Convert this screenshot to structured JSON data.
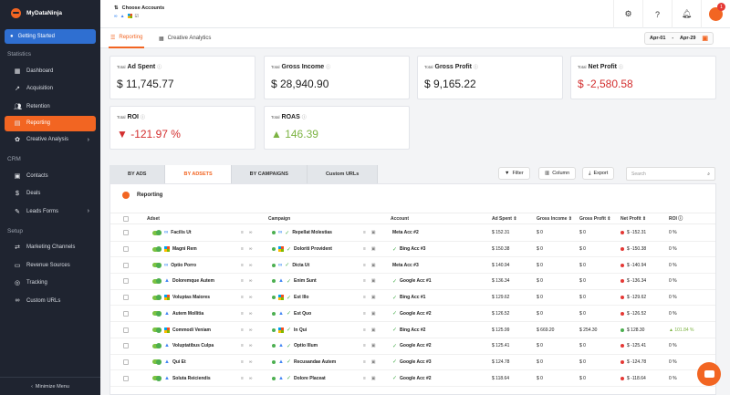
{
  "sidebar": {
    "brand": "MyDataNinja",
    "getting_started": "Getting Started",
    "sections": {
      "statistics": "Statistics",
      "crm": "CRM",
      "setup": "Setup"
    },
    "statistics_items": [
      {
        "label": "Dashboard",
        "icon": "dashboard-icon"
      },
      {
        "label": "Acquisition",
        "icon": "trend-icon"
      },
      {
        "label": "Retention",
        "icon": "users-icon"
      },
      {
        "label": "Reporting",
        "icon": "report-icon",
        "active": true
      },
      {
        "label": "Creative Analysis",
        "icon": "palette-icon",
        "has_children": true
      }
    ],
    "crm_items": [
      {
        "label": "Contacts",
        "icon": "contacts-icon"
      },
      {
        "label": "Deals",
        "icon": "dollar-icon"
      },
      {
        "label": "Leads Forms",
        "icon": "form-icon",
        "has_children": true
      }
    ],
    "setup_items": [
      {
        "label": "Marketing Channels",
        "icon": "channels-icon"
      },
      {
        "label": "Revenue Sources",
        "icon": "revenue-icon"
      },
      {
        "label": "Tracking",
        "icon": "tracking-icon"
      },
      {
        "label": "Custom URLs",
        "icon": "link-icon"
      }
    ],
    "minimize": "Minimize Menu"
  },
  "topbar": {
    "choose_accounts": "Choose Accounts",
    "notification_count": "1"
  },
  "tabs": {
    "reporting": "Reporting",
    "creative_analytics": "Creative Analytics",
    "date_from": "Apr-01",
    "date_sep": "-",
    "date_to": "Apr-29"
  },
  "kpis": [
    {
      "small": "Total",
      "label": "Ad Spent",
      "value": "$ 11,745.77",
      "tone": "neutral"
    },
    {
      "small": "Total",
      "label": "Gross Income",
      "value": "$ 28,940.90",
      "tone": "neutral"
    },
    {
      "small": "Total",
      "label": "Gross Profit",
      "value": "$ 9,165.22",
      "tone": "neutral"
    },
    {
      "small": "Total",
      "label": "Net Profit",
      "value": "$ -2,580.58",
      "tone": "negative"
    },
    {
      "small": "Total",
      "label": "ROI",
      "value": "▼ -121.97 %",
      "tone": "negative"
    },
    {
      "small": "Total",
      "label": "ROAS",
      "value": "▲ 146.39",
      "tone": "positive"
    }
  ],
  "view_tabs": [
    "BY ADS",
    "BY ADSETS",
    "BY CAMPAIGNS",
    "Custom URLs"
  ],
  "toolbar": {
    "filter": "Filter",
    "column": "Column",
    "export": "Export",
    "search_placeholder": "Search"
  },
  "table": {
    "title": "Reporting",
    "headers": {
      "adset": "Adset",
      "campaign": "Campaign",
      "account": "Account",
      "ad_spent": "Ad Spent",
      "gross_income": "Gross Income",
      "gross_profit": "Gross Profit",
      "net_profit": "Net Profit",
      "roi": "ROI"
    },
    "rows": [
      {
        "adset": "Facilis Ut",
        "adset_platform": "meta",
        "campaign": "Repellat Molestias",
        "campaign_platform": "meta",
        "account": "Meta Acc #2",
        "account_check": false,
        "ad_spent": "$ 152.31",
        "gross_income": "$ 0",
        "gross_profit": "$ 0",
        "net_profit": "$ -152.31",
        "net_positive": false,
        "roi": "0 %"
      },
      {
        "adset": "Magni Rem",
        "adset_platform": "microsoft",
        "campaign": "Doloriti Provident",
        "campaign_platform": "microsoft",
        "account": "Bing Acc #3",
        "account_check": true,
        "ad_spent": "$ 150.38",
        "gross_income": "$ 0",
        "gross_profit": "$ 0",
        "net_profit": "$ -150.38",
        "net_positive": false,
        "roi": "0 %"
      },
      {
        "adset": "Optio Porro",
        "adset_platform": "meta",
        "campaign": "Dicta Ut",
        "campaign_platform": "meta",
        "account": "Meta Acc #3",
        "account_check": false,
        "ad_spent": "$ 140.94",
        "gross_income": "$ 0",
        "gross_profit": "$ 0",
        "net_profit": "$ -140.94",
        "net_positive": false,
        "roi": "0 %"
      },
      {
        "adset": "Doloremque Autem",
        "adset_platform": "google",
        "campaign": "Enim Sunt",
        "campaign_platform": "google",
        "account": "Google Acc #1",
        "account_check": true,
        "ad_spent": "$ 136.34",
        "gross_income": "$ 0",
        "gross_profit": "$ 0",
        "net_profit": "$ -136.34",
        "net_positive": false,
        "roi": "0 %"
      },
      {
        "adset": "Voluptas Maiores",
        "adset_platform": "microsoft",
        "campaign": "Est Illo",
        "campaign_platform": "microsoft",
        "account": "Bing Acc #1",
        "account_check": true,
        "ad_spent": "$ 129.62",
        "gross_income": "$ 0",
        "gross_profit": "$ 0",
        "net_profit": "$ -129.62",
        "net_positive": false,
        "roi": "0 %"
      },
      {
        "adset": "Autem Mollitia",
        "adset_platform": "google",
        "campaign": "Est Quo",
        "campaign_platform": "google",
        "account": "Google Acc #2",
        "account_check": true,
        "ad_spent": "$ 126.52",
        "gross_income": "$ 0",
        "gross_profit": "$ 0",
        "net_profit": "$ -126.52",
        "net_positive": false,
        "roi": "0 %"
      },
      {
        "adset": "Commodi Veniam",
        "adset_platform": "microsoft",
        "campaign": "In Qui",
        "campaign_platform": "microsoft",
        "account": "Bing Acc #2",
        "account_check": true,
        "ad_spent": "$ 125.99",
        "gross_income": "$ 669.20",
        "gross_profit": "$ 254.30",
        "net_profit": "$ 128.30",
        "net_positive": true,
        "roi": "▲ 101.84 %"
      },
      {
        "adset": "Voluptatibus Culpa",
        "adset_platform": "google",
        "campaign": "Optio Illum",
        "campaign_platform": "google",
        "account": "Google Acc #2",
        "account_check": true,
        "ad_spent": "$ 125.41",
        "gross_income": "$ 0",
        "gross_profit": "$ 0",
        "net_profit": "$ -125.41",
        "net_positive": false,
        "roi": "0 %"
      },
      {
        "adset": "Qui Et",
        "adset_platform": "google",
        "campaign": "Recusandae Autem",
        "campaign_platform": "google",
        "account": "Google Acc #3",
        "account_check": true,
        "ad_spent": "$ 124.78",
        "gross_income": "$ 0",
        "gross_profit": "$ 0",
        "net_profit": "$ -124.78",
        "net_positive": false,
        "roi": "0 %"
      },
      {
        "adset": "Soluta Reiciendis",
        "adset_platform": "google",
        "campaign": "Dolore Placeat",
        "campaign_platform": "google",
        "account": "Google Acc #2",
        "account_check": true,
        "ad_spent": "$ 118.64",
        "gross_income": "$ 0",
        "gross_profit": "$ 0",
        "net_profit": "$ -118.64",
        "net_positive": false,
        "roi": "0 %"
      }
    ]
  }
}
